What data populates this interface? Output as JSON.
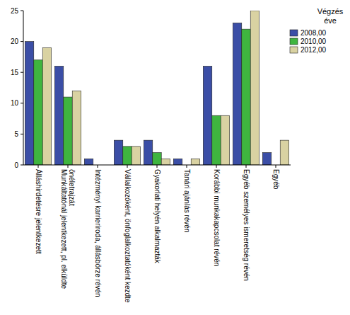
{
  "chart_data": {
    "type": "bar",
    "legend_title": "Végzés éve",
    "categories": [
      "Álláshirdetésre jelentkezett",
      "Munkáltatónál jelentkezett, pl. elküldte önéletrajzát",
      "Intézményi karrieriroda, állásbörze révén",
      "Vállalkozóként, önfoglalkoztatóként kezdte",
      "Gyakorlati helyén alkalmazták",
      "Tanári ajánlás révén",
      "Korábbi munkakapcsolat révén",
      "Egyéb személyes ismeretség révén",
      "Egyéb"
    ],
    "series": [
      {
        "name": "2008,00",
        "color": "#3b4ea6",
        "values": [
          20,
          16,
          1,
          4,
          4,
          1,
          16,
          23,
          2
        ]
      },
      {
        "name": "2010,00",
        "color": "#3fb53f",
        "values": [
          17,
          11,
          0,
          3,
          2,
          0,
          8,
          22,
          0
        ]
      },
      {
        "name": "2012,00",
        "color": "#d9d2a2",
        "values": [
          19,
          12,
          0,
          3,
          1,
          1,
          8,
          25,
          4
        ]
      }
    ],
    "ylim": [
      0,
      25
    ],
    "yticks": [
      0,
      5,
      10,
      15,
      20,
      25
    ],
    "grid": false,
    "legend": "right"
  }
}
